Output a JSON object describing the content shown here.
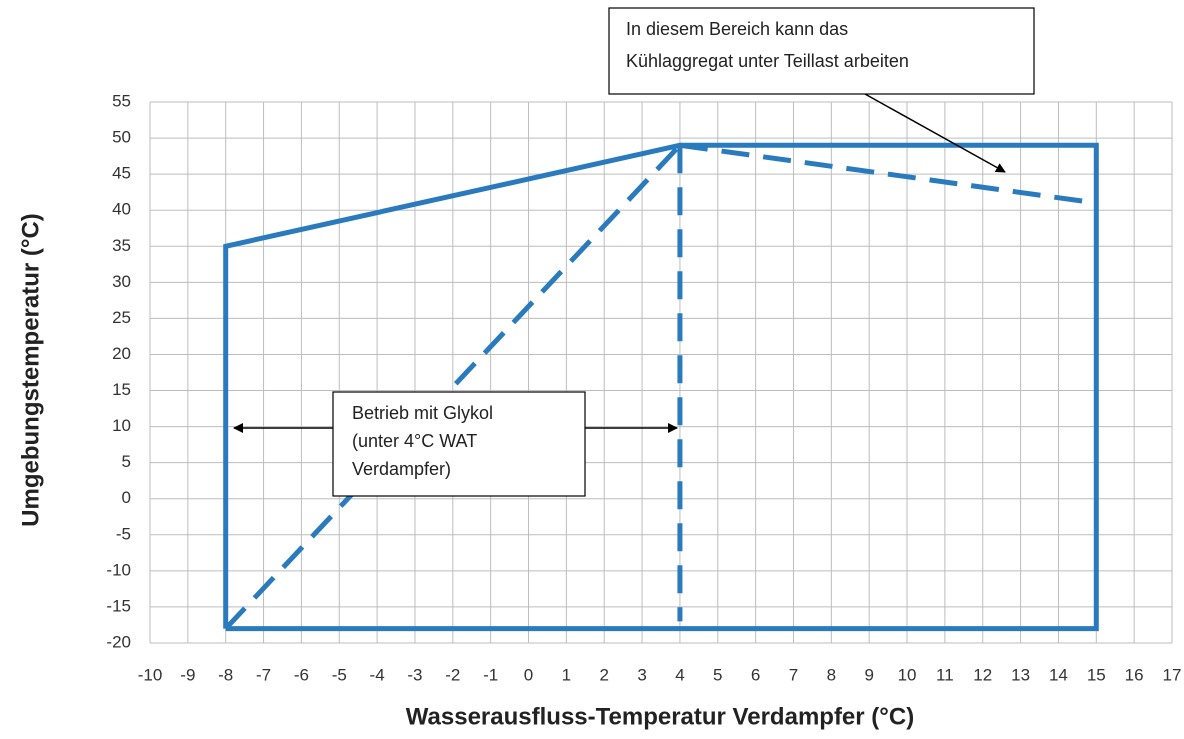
{
  "chart_data": {
    "type": "line",
    "x_label": "Wasserausfluss-Temperatur Verdampfer (°C)",
    "y_label": "Umgebungstemperatur (°C)",
    "xlim": [
      -10,
      17
    ],
    "ylim": [
      -20,
      55
    ],
    "xticks": [
      -10,
      -9,
      -8,
      -7,
      -6,
      -5,
      -4,
      -3,
      -2,
      -1,
      0,
      1,
      2,
      3,
      4,
      5,
      6,
      7,
      8,
      9,
      10,
      11,
      12,
      13,
      14,
      15,
      16,
      17
    ],
    "yticks": [
      -20,
      -15,
      -10,
      -5,
      0,
      5,
      10,
      15,
      20,
      25,
      30,
      35,
      40,
      45,
      50,
      55
    ],
    "grid": true,
    "series": [
      {
        "color": "#2a7bbd",
        "style": "solid",
        "x": [
          -8,
          -8,
          4,
          15,
          15,
          -8
        ],
        "values": [
          -18,
          35,
          49,
          49,
          -18,
          -18
        ]
      },
      {
        "color": "#2a7bbd",
        "style": "dashed",
        "x": [
          -8,
          4
        ],
        "values": [
          -18,
          49
        ]
      },
      {
        "color": "#2a7bbd",
        "style": "dashed",
        "x": [
          4,
          4
        ],
        "values": [
          49,
          -17
        ]
      },
      {
        "color": "#2a7bbd",
        "style": "dashed",
        "x": [
          4,
          15
        ],
        "values": [
          49,
          41
        ]
      }
    ],
    "annotations": [
      {
        "lines": [
          "In diesem Bereich kann das",
          "Kühlaggregat unter Teillast arbeiten"
        ]
      },
      {
        "lines": [
          "Betrieb mit Glykol",
          "(unter 4°C WAT",
          "Verdampfer)"
        ]
      }
    ]
  }
}
